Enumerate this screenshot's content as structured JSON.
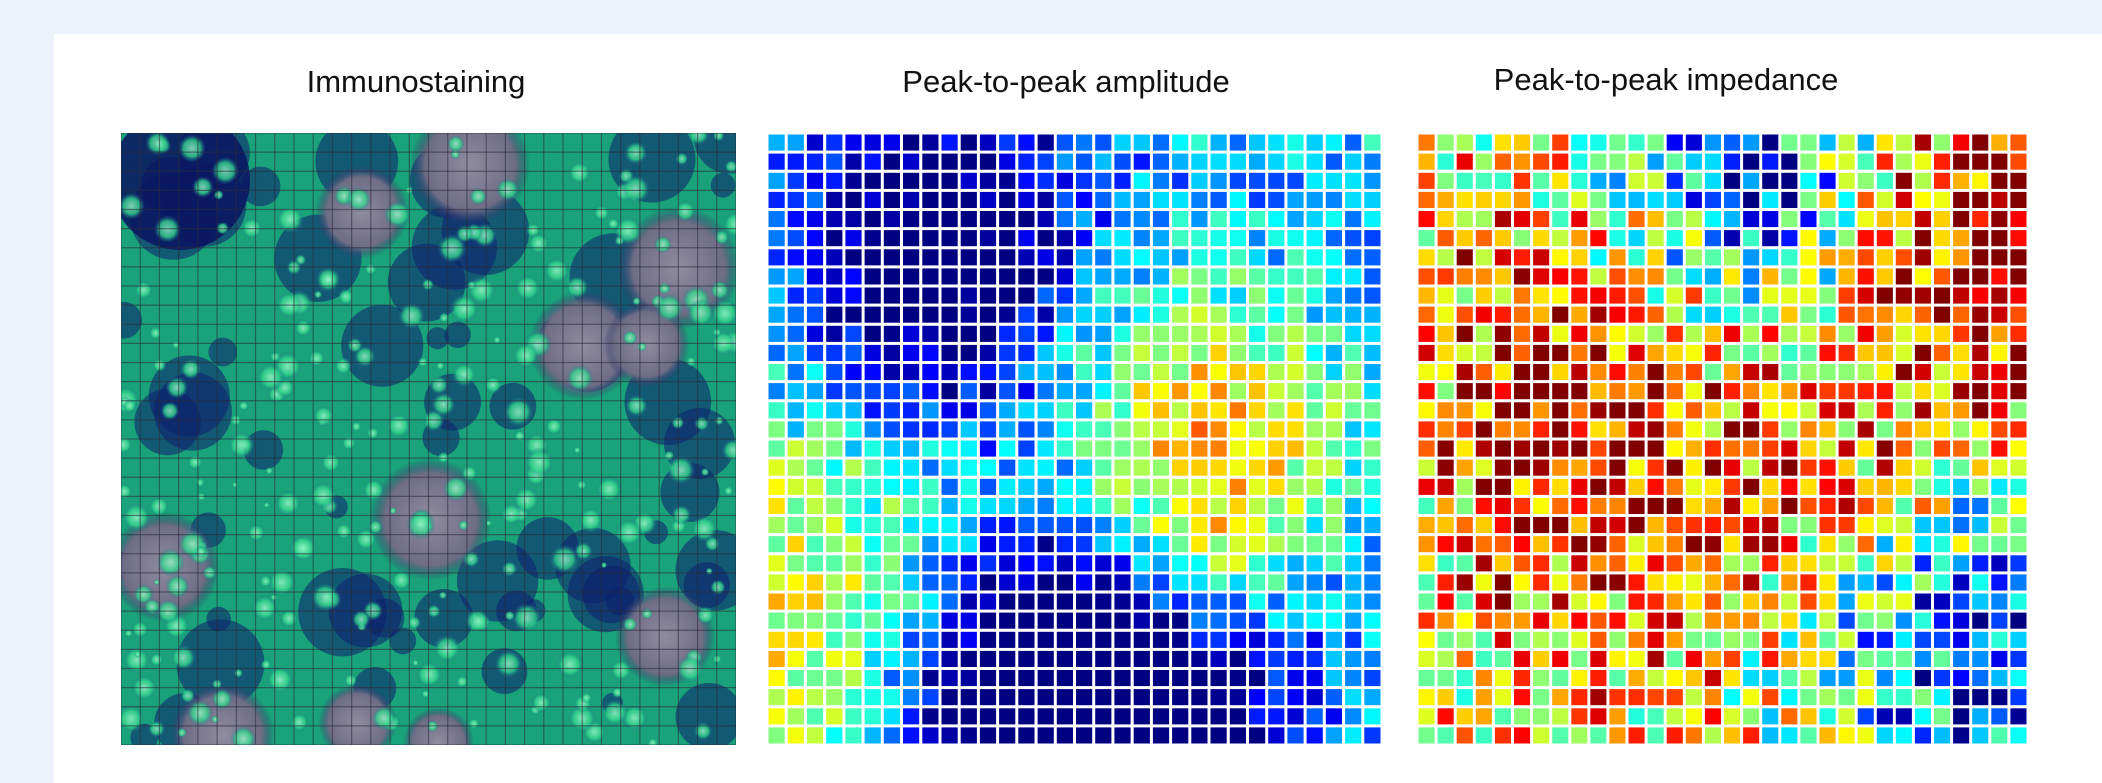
{
  "panels": [
    {
      "title": "Immunostaining"
    },
    {
      "title": "Peak-to-peak amplitude"
    },
    {
      "title": "Peak-to-peak impedance"
    }
  ]
}
